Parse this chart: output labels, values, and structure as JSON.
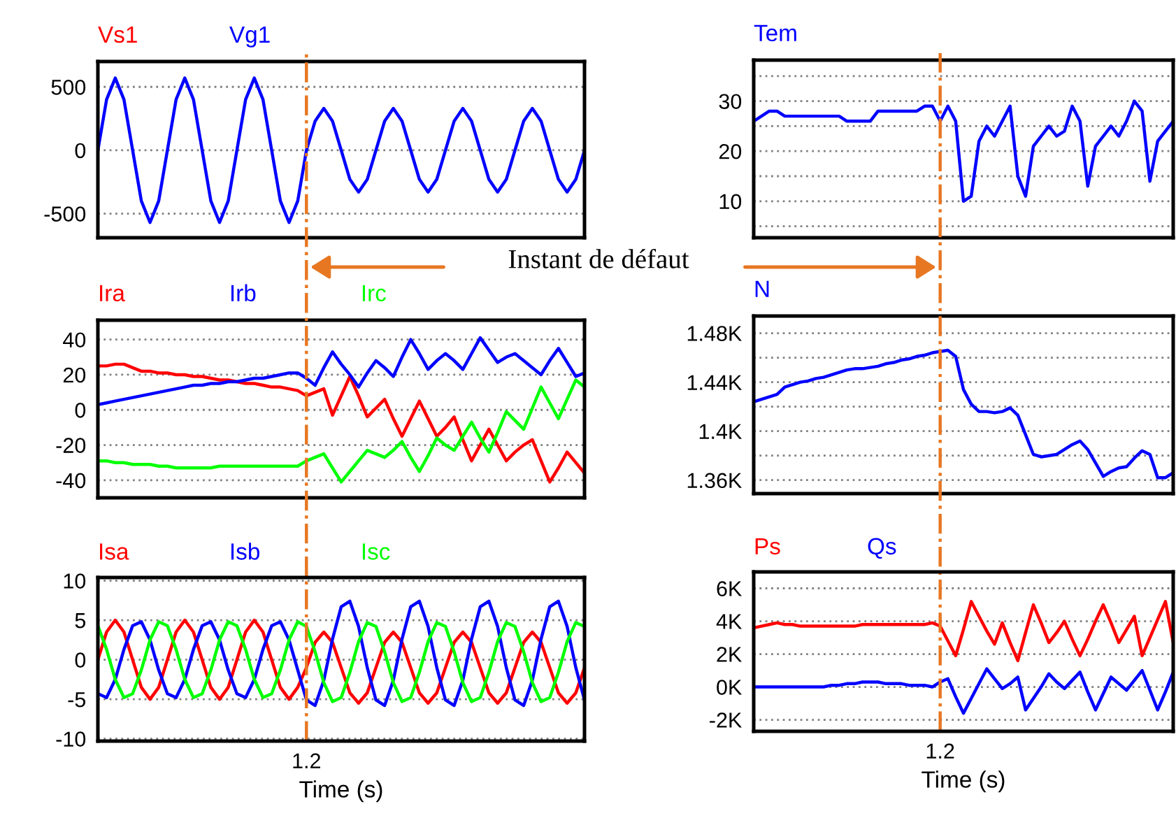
{
  "chart_data": [
    {
      "type": "line",
      "ylim": [
        -690,
        700
      ],
      "yticks": [
        -500,
        0,
        500
      ],
      "tick_labels": "y",
      "grid": true,
      "line_style": "solid",
      "marker": "none",
      "categories": [
        null,
        null,
        null,
        null,
        null,
        null,
        null,
        null,
        null,
        null,
        null,
        null,
        null,
        null,
        null,
        null,
        null,
        null,
        null,
        null,
        null,
        null,
        null,
        null,
        null,
        null,
        null,
        null,
        null,
        null,
        null,
        null,
        null,
        null,
        null,
        null,
        null,
        null,
        null,
        null,
        null,
        null,
        null,
        null,
        null,
        null,
        null,
        null,
        null,
        null,
        null,
        null,
        null,
        null,
        null,
        null,
        null
      ],
      "series": [
        {
          "name": "Vs1",
          "color": "#ff0000",
          "values": [
            null,
            null,
            null,
            null,
            null,
            null,
            null,
            null,
            null,
            null,
            null,
            null,
            null,
            null,
            null,
            null,
            null,
            null,
            null,
            null,
            null,
            null,
            null,
            null,
            null,
            null,
            null,
            null,
            null,
            null,
            null,
            null,
            null,
            null,
            null,
            null,
            null,
            null,
            null,
            null,
            null,
            null,
            null,
            null,
            null,
            null,
            null,
            null,
            null,
            null,
            null,
            null,
            null,
            null,
            null,
            null,
            null
          ]
        },
        {
          "name": "Vg1",
          "color": "#0000ff",
          "values": [
            0,
            400,
            570,
            400,
            0,
            -400,
            -570,
            -400,
            0,
            400,
            570,
            400,
            0,
            -400,
            -570,
            -400,
            0,
            400,
            570,
            400,
            0,
            -400,
            -570,
            -400,
            0,
            230,
            330,
            230,
            0,
            -230,
            -330,
            -230,
            0,
            230,
            330,
            230,
            0,
            -230,
            -330,
            -230,
            0,
            230,
            330,
            230,
            0,
            -230,
            -330,
            -230,
            0,
            230,
            330,
            230,
            0,
            -230,
            -330,
            -230,
            0
          ]
        }
      ],
      "annotations": [
        "Instant de défaut"
      ]
    },
    {
      "type": "line",
      "ylim": [
        2.7,
        38.2
      ],
      "yticks": [
        {
          "value": 5,
          "label": null
        },
        10,
        {
          "value": 15,
          "label": null
        },
        20,
        {
          "value": 25,
          "label": null
        },
        30,
        {
          "value": 35,
          "label": null
        }
      ],
      "tick_labels": "y",
      "grid": true,
      "line_style": "solid",
      "marker": "none",
      "categories": [
        null,
        null,
        null,
        null,
        null,
        null,
        null,
        null,
        null,
        null,
        null,
        null,
        null,
        null,
        null,
        null,
        null,
        null,
        null,
        null,
        null,
        null,
        null,
        null,
        null,
        null,
        null,
        null,
        null,
        null,
        null,
        null,
        null,
        null,
        null,
        null,
        null,
        null,
        null,
        null,
        null,
        null,
        null,
        null,
        null,
        null,
        null,
        null,
        null,
        null,
        null,
        null,
        null,
        null,
        null
      ],
      "series": [
        {
          "name": "Tem",
          "color": "#0000ff",
          "values": [
            26,
            27,
            28,
            28,
            27,
            27,
            27,
            27,
            27,
            27,
            27,
            27,
            26,
            26,
            26,
            26,
            28,
            28,
            28,
            28,
            28,
            28,
            29,
            29,
            26,
            29,
            26,
            10,
            11,
            22,
            25,
            23,
            26,
            29,
            15,
            11,
            21,
            23,
            25,
            23,
            24,
            29,
            26,
            13,
            21,
            23,
            25,
            23,
            26,
            30,
            28,
            14,
            22,
            24,
            26
          ]
        }
      ]
    },
    {
      "type": "line",
      "ylim": [
        -50,
        51
      ],
      "yticks": [
        -40,
        -20,
        0,
        20,
        40
      ],
      "tick_labels": "y",
      "grid": true,
      "line_style": "solid",
      "marker": "none",
      "categories": [
        null,
        null,
        null,
        null,
        null,
        null,
        null,
        null,
        null,
        null,
        null,
        null,
        null,
        null,
        null,
        null,
        null,
        null,
        null,
        null,
        null,
        null,
        null,
        null,
        null,
        null,
        null,
        null,
        null,
        null,
        null,
        null,
        null,
        null,
        null,
        null,
        null,
        null,
        null,
        null,
        null,
        null,
        null,
        null,
        null,
        null,
        null,
        null,
        null,
        null,
        null,
        null,
        null,
        null,
        null,
        null,
        null
      ],
      "series": [
        {
          "name": "Ira",
          "color": "#ff0000",
          "values": [
            25,
            25,
            26,
            26,
            24,
            22,
            22,
            21,
            21,
            20,
            20,
            19,
            19,
            18,
            17,
            17,
            16,
            15,
            15,
            14,
            13,
            13,
            12,
            11,
            8,
            10,
            12,
            -3,
            8,
            19,
            8,
            -4,
            1,
            6,
            -5,
            -15,
            -5,
            5,
            -5,
            -15,
            -10,
            -4,
            -17,
            -29,
            -20,
            -11,
            -20,
            -29,
            -24,
            -20,
            -17,
            -29,
            -41,
            -33,
            -24,
            -30,
            -36
          ]
        },
        {
          "name": "Irb",
          "color": "#0000ff",
          "values": [
            3,
            4,
            5,
            6,
            7,
            8,
            9,
            10,
            11,
            12,
            13,
            14,
            14,
            15,
            15,
            16,
            16,
            17,
            18,
            18,
            19,
            20,
            21,
            21,
            18,
            14,
            24,
            33,
            26,
            20,
            13,
            21,
            28,
            24,
            19,
            30,
            40,
            32,
            23,
            28,
            32,
            28,
            23,
            32,
            41,
            34,
            27,
            30,
            32,
            28,
            24,
            20,
            28,
            35,
            27,
            19,
            21
          ]
        },
        {
          "name": "Irc",
          "color": "#00ff00",
          "values": [
            -29,
            -29,
            -30,
            -30,
            -31,
            -31,
            -31,
            -32,
            -32,
            -33,
            -33,
            -33,
            -33,
            -33,
            -32,
            -32,
            -32,
            -32,
            -32,
            -32,
            -32,
            -32,
            -32,
            -32,
            -29,
            -27,
            -25,
            -33,
            -41,
            -35,
            -29,
            -23,
            -25,
            -27,
            -23,
            -18,
            -27,
            -35,
            -26,
            -16,
            -20,
            -23,
            -15,
            -7,
            -16,
            -24,
            -13,
            -1,
            -6,
            -11,
            1,
            13,
            4,
            -5,
            6,
            17,
            13
          ]
        }
      ]
    },
    {
      "type": "line",
      "ylim": [
        1349,
        1494
      ],
      "yticks": [
        {
          "value": 1360,
          "label": "1.36K"
        },
        {
          "value": 1380,
          "label": null
        },
        {
          "value": 1400,
          "label": "1.4K"
        },
        {
          "value": 1420,
          "label": null
        },
        {
          "value": 1440,
          "label": "1.44K"
        },
        {
          "value": 1460,
          "label": null
        },
        {
          "value": 1480,
          "label": "1.48K"
        }
      ],
      "tick_labels": "y",
      "grid": true,
      "line_style": "solid",
      "marker": "none",
      "categories": [
        null,
        null,
        null,
        null,
        null,
        null,
        null,
        null,
        null,
        null,
        null,
        null,
        null,
        null,
        null,
        null,
        null,
        null,
        null,
        null,
        null,
        null,
        null,
        null,
        null,
        null,
        null,
        null,
        null,
        null,
        null,
        null,
        null,
        null,
        null,
        null,
        null,
        null,
        null,
        null,
        null,
        null,
        null,
        null,
        null,
        null,
        null,
        null,
        null,
        null,
        null,
        null,
        null,
        null,
        null
      ],
      "series": [
        {
          "name": "N",
          "color": "#0000ff",
          "values": [
            1424,
            1426,
            1428,
            1430,
            1436,
            1438,
            1440,
            1441,
            1443,
            1444,
            1446,
            1448,
            1450,
            1451,
            1451,
            1452,
            1453,
            1455,
            1456,
            1458,
            1459,
            1461,
            1462,
            1464,
            1465,
            1466,
            1461,
            1434,
            1422,
            1416,
            1416,
            1415,
            1416,
            1419,
            1413,
            1397,
            1381,
            1379,
            1380,
            1381,
            1385,
            1389,
            1392,
            1385,
            1374,
            1363,
            1367,
            1370,
            1371,
            1378,
            1384,
            1381,
            1362,
            1362,
            1366
          ]
        }
      ]
    },
    {
      "type": "line",
      "ylim": [
        -10.3,
        10.4
      ],
      "yticks": [
        -10,
        -5,
        0,
        5,
        10
      ],
      "xlabel": "Time (s)",
      "grid": true,
      "line_style": "solid",
      "marker": "none",
      "categories": [
        null,
        null,
        null,
        null,
        null,
        null,
        null,
        null,
        null,
        null,
        null,
        null,
        null,
        null,
        null,
        null,
        null,
        null,
        null,
        null,
        null,
        null,
        null,
        null,
        "1.2",
        null,
        null,
        null,
        null,
        null,
        null,
        null,
        null,
        null,
        null,
        null,
        null,
        null,
        null,
        null,
        null,
        null,
        null,
        null,
        null,
        null,
        null,
        null,
        null,
        null,
        null,
        null,
        null,
        null,
        null,
        null,
        null
      ],
      "series": [
        {
          "name": "Isa",
          "color": "#ff0000",
          "values": [
            0,
            3.5,
            5,
            3.5,
            0,
            -3.5,
            -5,
            -3.5,
            0,
            3.5,
            5,
            3.5,
            0,
            -3.5,
            -5,
            -3.5,
            0,
            3.5,
            5,
            3.5,
            0,
            -3.5,
            -5,
            -3.5,
            -1,
            2.2,
            3.5,
            2.2,
            -1,
            -4.2,
            -5.5,
            -4.2,
            -1,
            2.2,
            3.5,
            2.2,
            -1,
            -4.2,
            -5.5,
            -4.2,
            -1,
            2.2,
            3.5,
            2.2,
            -1,
            -4.2,
            -5.5,
            -4.2,
            -1,
            2.2,
            3.5,
            2.2,
            -1,
            -4.2,
            -5.5,
            -4.2,
            -1
          ]
        },
        {
          "name": "Isb",
          "color": "#0000ff",
          "values": [
            -4.3,
            -4.8,
            -2.5,
            1.3,
            4.3,
            4.8,
            2.5,
            -1.3,
            -4.3,
            -4.8,
            -2.5,
            1.3,
            4.3,
            4.8,
            2.5,
            -1.3,
            -4.3,
            -4.8,
            -2.5,
            1.3,
            4.3,
            4.8,
            2.5,
            -1.3,
            -5.1,
            -5.8,
            -2.6,
            2.6,
            6.7,
            7.4,
            4.2,
            -1.0,
            -5.1,
            -5.8,
            -2.6,
            2.6,
            6.7,
            7.4,
            4.2,
            -1.0,
            -5.1,
            -5.8,
            -2.6,
            2.6,
            6.7,
            7.4,
            4.2,
            -1.0,
            -5.1,
            -5.8,
            -2.6,
            2.6,
            6.7,
            7.4,
            4.2,
            -1.0,
            -5.1
          ]
        },
        {
          "name": "Isc",
          "color": "#00ff00",
          "values": [
            4.3,
            1.3,
            -2.5,
            -4.8,
            -4.3,
            -1.3,
            2.5,
            4.8,
            4.3,
            1.3,
            -2.5,
            -4.8,
            -4.3,
            -1.3,
            2.5,
            4.8,
            4.3,
            1.3,
            -2.5,
            -4.8,
            -4.3,
            -1.3,
            2.5,
            4.8,
            4.2,
            1.0,
            -2.9,
            -5.3,
            -4.8,
            -1.6,
            2.3,
            4.7,
            4.2,
            1.0,
            -2.9,
            -5.3,
            -4.8,
            -1.6,
            2.3,
            4.7,
            4.2,
            1.0,
            -2.9,
            -5.3,
            -4.8,
            -1.6,
            2.3,
            4.7,
            4.2,
            1.0,
            -2.9,
            -5.3,
            -4.8,
            -1.6,
            2.3,
            4.7,
            4.2
          ]
        }
      ],
      "ref_lines": [
        {
          "axis": "x",
          "value": "1.2",
          "color": "#e87722",
          "line_style": "dashdot"
        }
      ]
    },
    {
      "type": "line",
      "ylim": [
        -2700,
        7000
      ],
      "yticks": [
        {
          "value": -2000,
          "label": "-2K"
        },
        {
          "value": 0,
          "label": "0K"
        },
        {
          "value": 2000,
          "label": "2K"
        },
        {
          "value": 4000,
          "label": "4K"
        },
        {
          "value": 6000,
          "label": "6K"
        }
      ],
      "xlabel": "Time (s)",
      "grid": true,
      "line_style": "solid",
      "marker": "none",
      "categories": [
        null,
        null,
        null,
        null,
        null,
        null,
        null,
        null,
        null,
        null,
        null,
        null,
        null,
        null,
        null,
        null,
        null,
        null,
        null,
        null,
        null,
        null,
        null,
        null,
        "1.2",
        null,
        null,
        null,
        null,
        null,
        null,
        null,
        null,
        null,
        null,
        null,
        null,
        null,
        null,
        null,
        null,
        null,
        null,
        null,
        null,
        null,
        null,
        null,
        null,
        null,
        null,
        null,
        null,
        null,
        null
      ],
      "series": [
        {
          "name": "Ps",
          "color": "#ff0000",
          "values": [
            3600,
            3700,
            3800,
            3900,
            3800,
            3800,
            3700,
            3700,
            3700,
            3700,
            3700,
            3700,
            3700,
            3700,
            3800,
            3800,
            3800,
            3800,
            3800,
            3800,
            3800,
            3800,
            3800,
            3900,
            3700,
            2800,
            1900,
            3500,
            5200,
            4300,
            3400,
            2600,
            3900,
            2700,
            1600,
            3300,
            5000,
            3900,
            2700,
            3300,
            4000,
            2900,
            1900,
            2900,
            4000,
            5000,
            3900,
            2700,
            3500,
            4300,
            1900,
            3000,
            4100,
            5200,
            2700
          ]
        },
        {
          "name": "Qs",
          "color": "#0000ff",
          "values": [
            0,
            0,
            0,
            0,
            0,
            0,
            0,
            0,
            0,
            0,
            100,
            100,
            200,
            200,
            300,
            300,
            300,
            200,
            200,
            200,
            100,
            100,
            100,
            0,
            300,
            500,
            -600,
            -1600,
            -700,
            200,
            1100,
            500,
            -100,
            200,
            600,
            -1400,
            -700,
            0,
            800,
            300,
            -100,
            400,
            900,
            -300,
            -1400,
            -400,
            600,
            200,
            -200,
            400,
            1000,
            -200,
            -1400,
            -300,
            900
          ]
        }
      ],
      "ref_lines": [
        {
          "axis": "x",
          "value": "1.2",
          "color": "#e87722",
          "line_style": "dashdot"
        }
      ]
    }
  ]
}
